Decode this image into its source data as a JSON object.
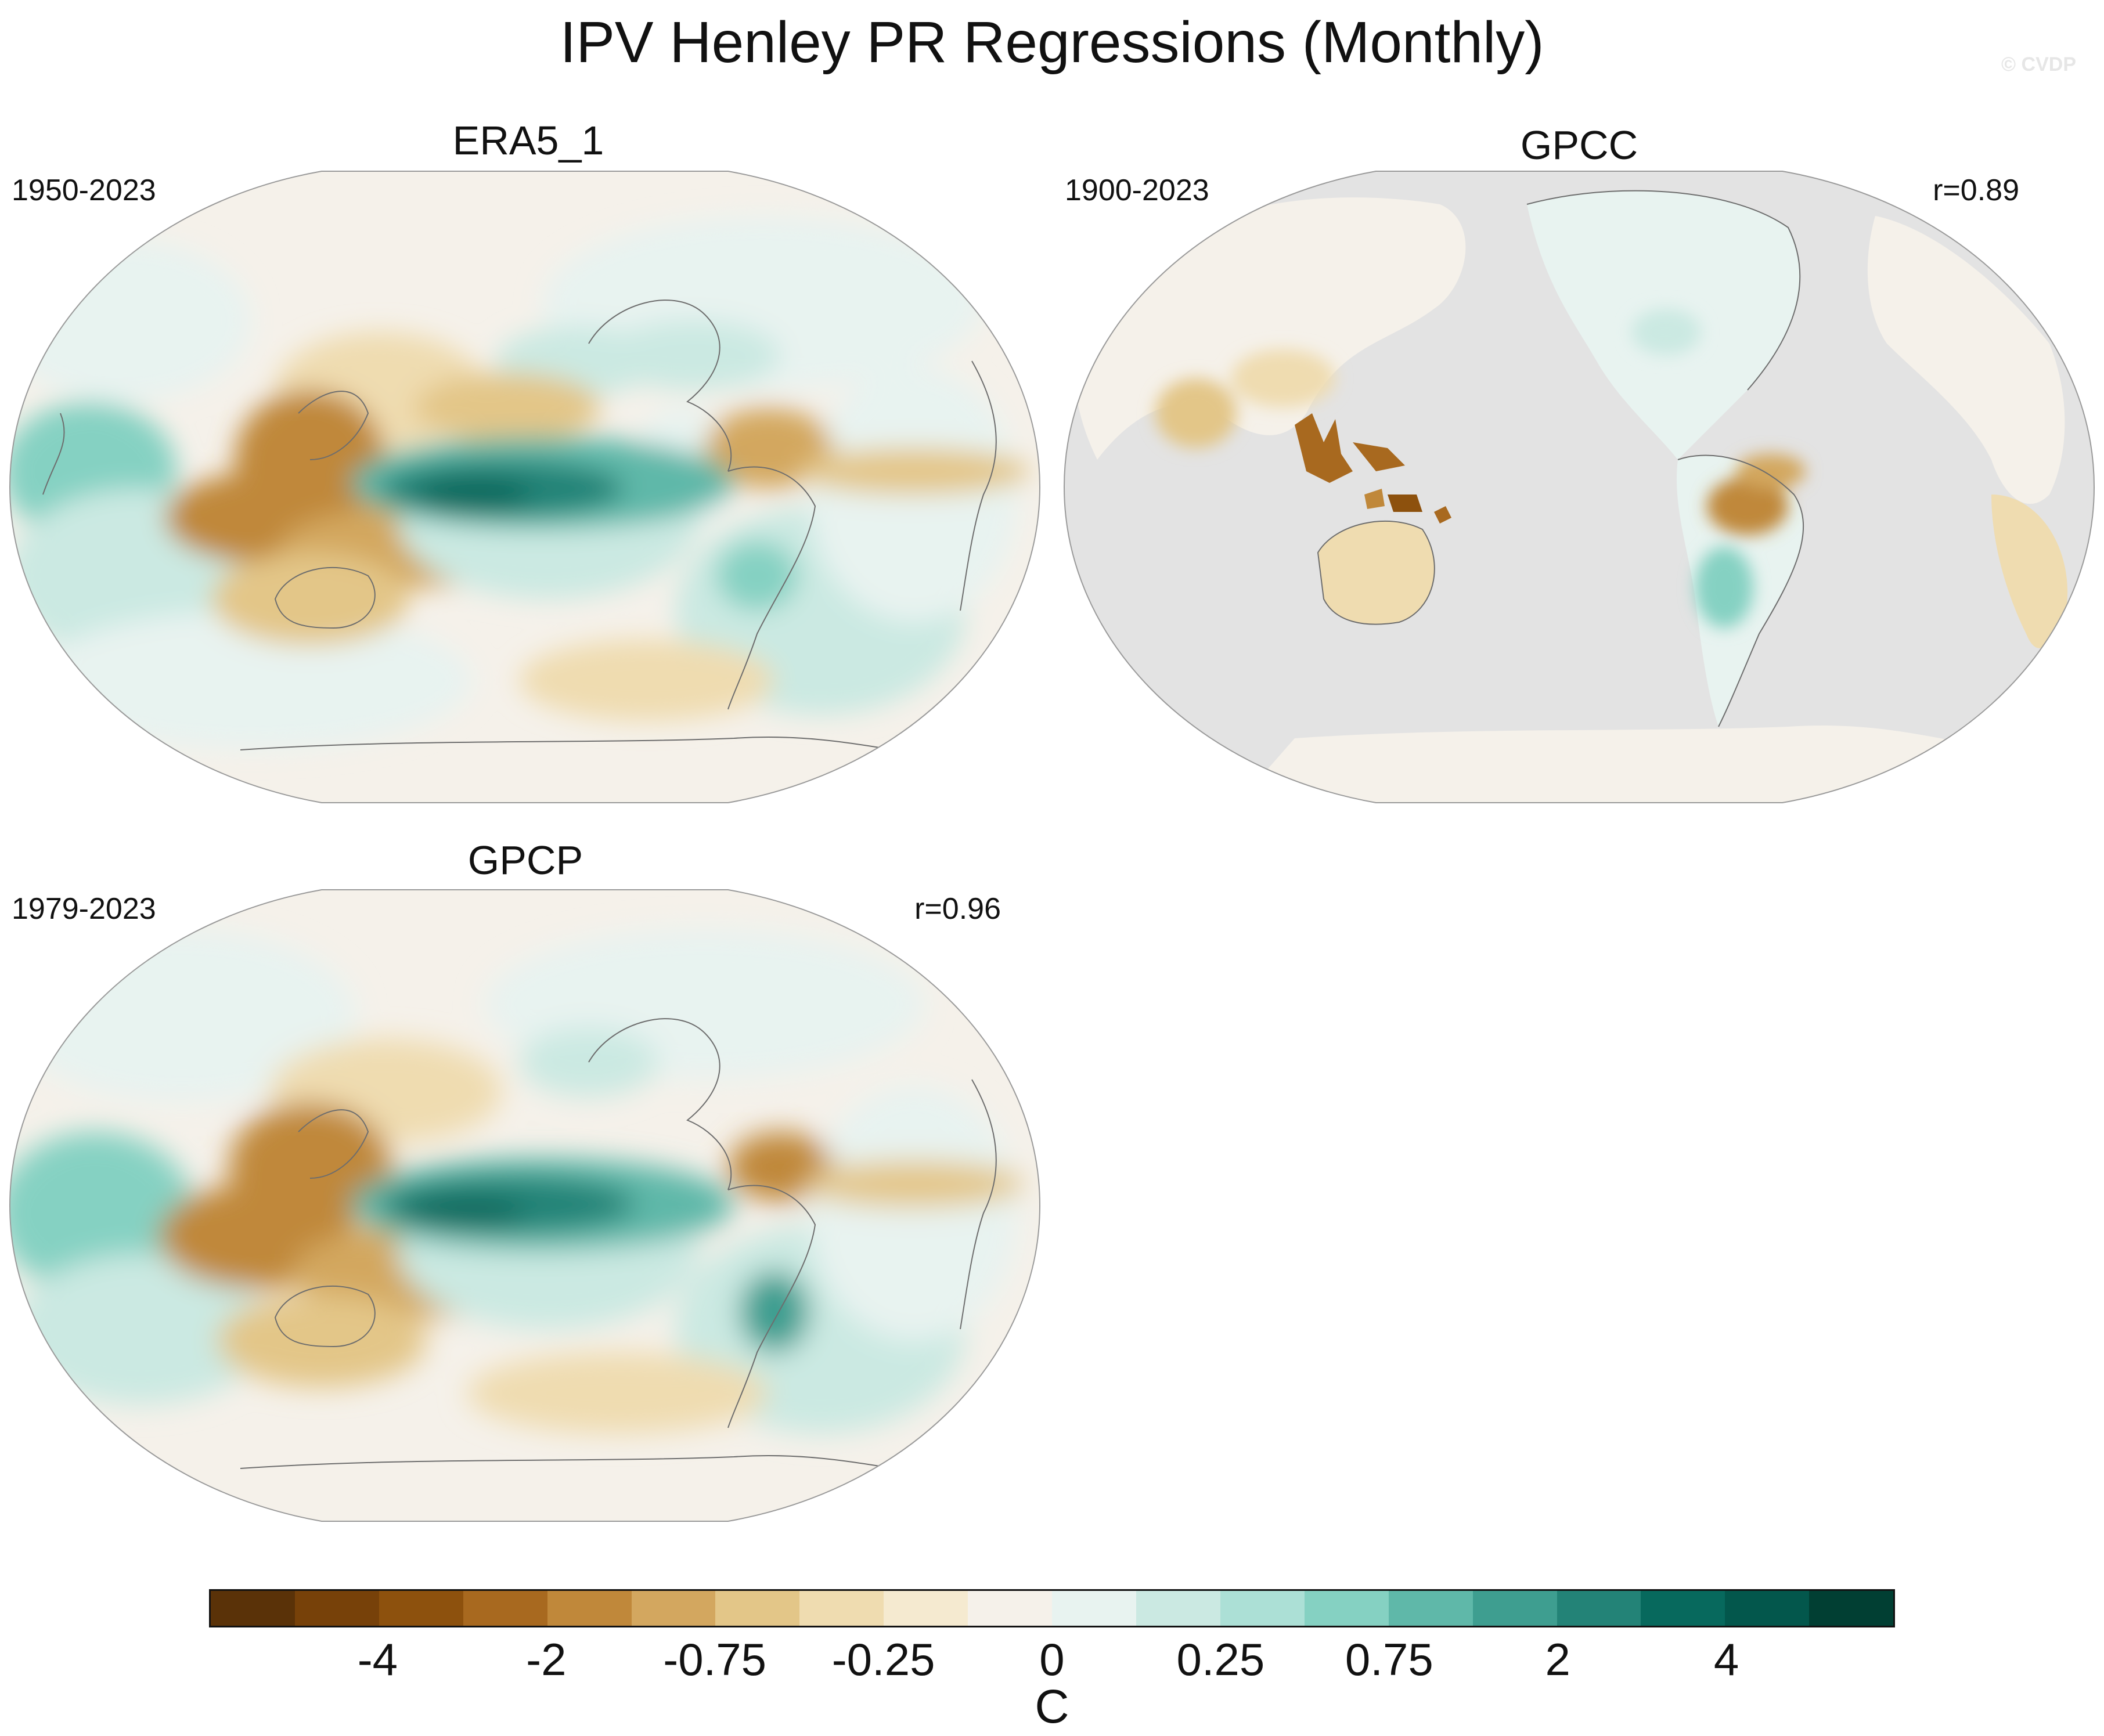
{
  "title": "IPV Henley PR Regressions (Monthly)",
  "watermark": "© CVDP",
  "panels": [
    {
      "name": "ERA5_1",
      "period": "1950-2023",
      "correlation": ""
    },
    {
      "name": "GPCC",
      "period": "1900-2023",
      "correlation": "r=0.89"
    },
    {
      "name": "GPCP",
      "period": "1979-2023",
      "correlation": "r=0.96"
    }
  ],
  "colorbar": {
    "units": "C",
    "tick_labels": [
      "-4",
      "-2",
      "-0.75",
      "-0.25",
      "0",
      "0.25",
      "0.75",
      "2",
      "4"
    ],
    "colors": [
      "#5a3208",
      "#774109",
      "#8d510d",
      "#a8691f",
      "#c0883a",
      "#d3a75f",
      "#e3c688",
      "#efdcb0",
      "#f5ead0",
      "#f5f1ea",
      "#e8f3f0",
      "#cbe9e2",
      "#ace0d6",
      "#85d1c2",
      "#5fb8a9",
      "#3e9e90",
      "#238377",
      "#07695d",
      "#03574c",
      "#013f33"
    ]
  },
  "map_colors": {
    "land_missing": "#e3e3e3",
    "coast": "#6d6d6d",
    "map_border": "#9a9a9a"
  }
}
